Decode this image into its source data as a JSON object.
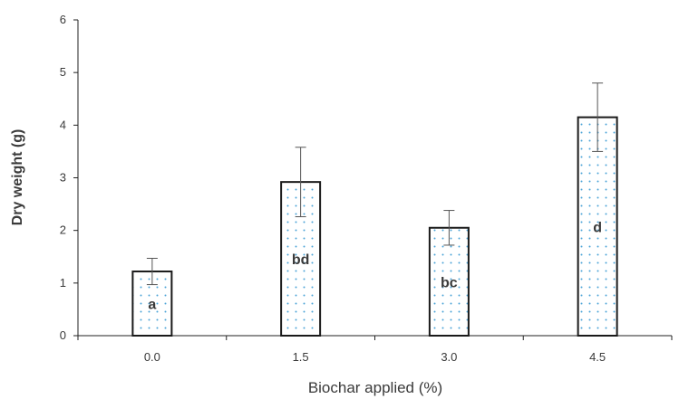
{
  "chart_data": {
    "type": "bar",
    "categories": [
      "0.0",
      "1.5",
      "3.0",
      "4.5"
    ],
    "values": [
      1.22,
      2.92,
      2.05,
      4.15
    ],
    "error": [
      0.25,
      0.66,
      0.33,
      0.65
    ],
    "letters": [
      "a",
      "bd",
      "bc",
      "d"
    ],
    "xlabel": "Biochar applied (%)",
    "ylabel": "Dry weight (g)",
    "ylim": [
      0,
      6
    ],
    "yticks": [
      "0",
      "1",
      "2",
      "3",
      "4",
      "5",
      "6"
    ],
    "grid": false,
    "legend": "none",
    "bar_fill": "dotted",
    "colors": {
      "bar_outline": "#1a1a1a",
      "dot": "#4aa3d6",
      "axis": "#222222",
      "text": "#3a3a3a"
    }
  }
}
